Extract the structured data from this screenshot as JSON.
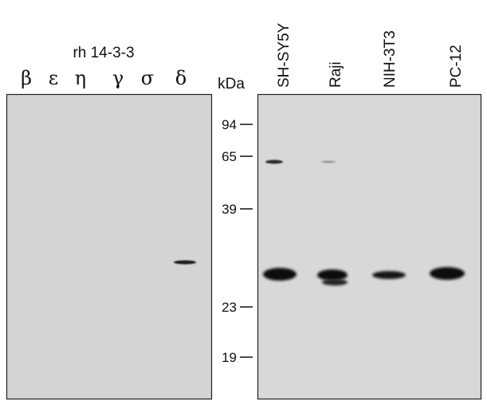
{
  "left_panel": {
    "title": "rh 14-3-3",
    "lanes": [
      "β",
      "ε",
      "η",
      "γ",
      "σ",
      "δ"
    ]
  },
  "markers": {
    "unit": "kDa",
    "values": [
      94,
      65,
      39,
      23,
      19
    ]
  },
  "right_panel": {
    "lanes": [
      "SH-SY5Y",
      "Raji",
      "NIH-3T3",
      "PC-12"
    ]
  }
}
